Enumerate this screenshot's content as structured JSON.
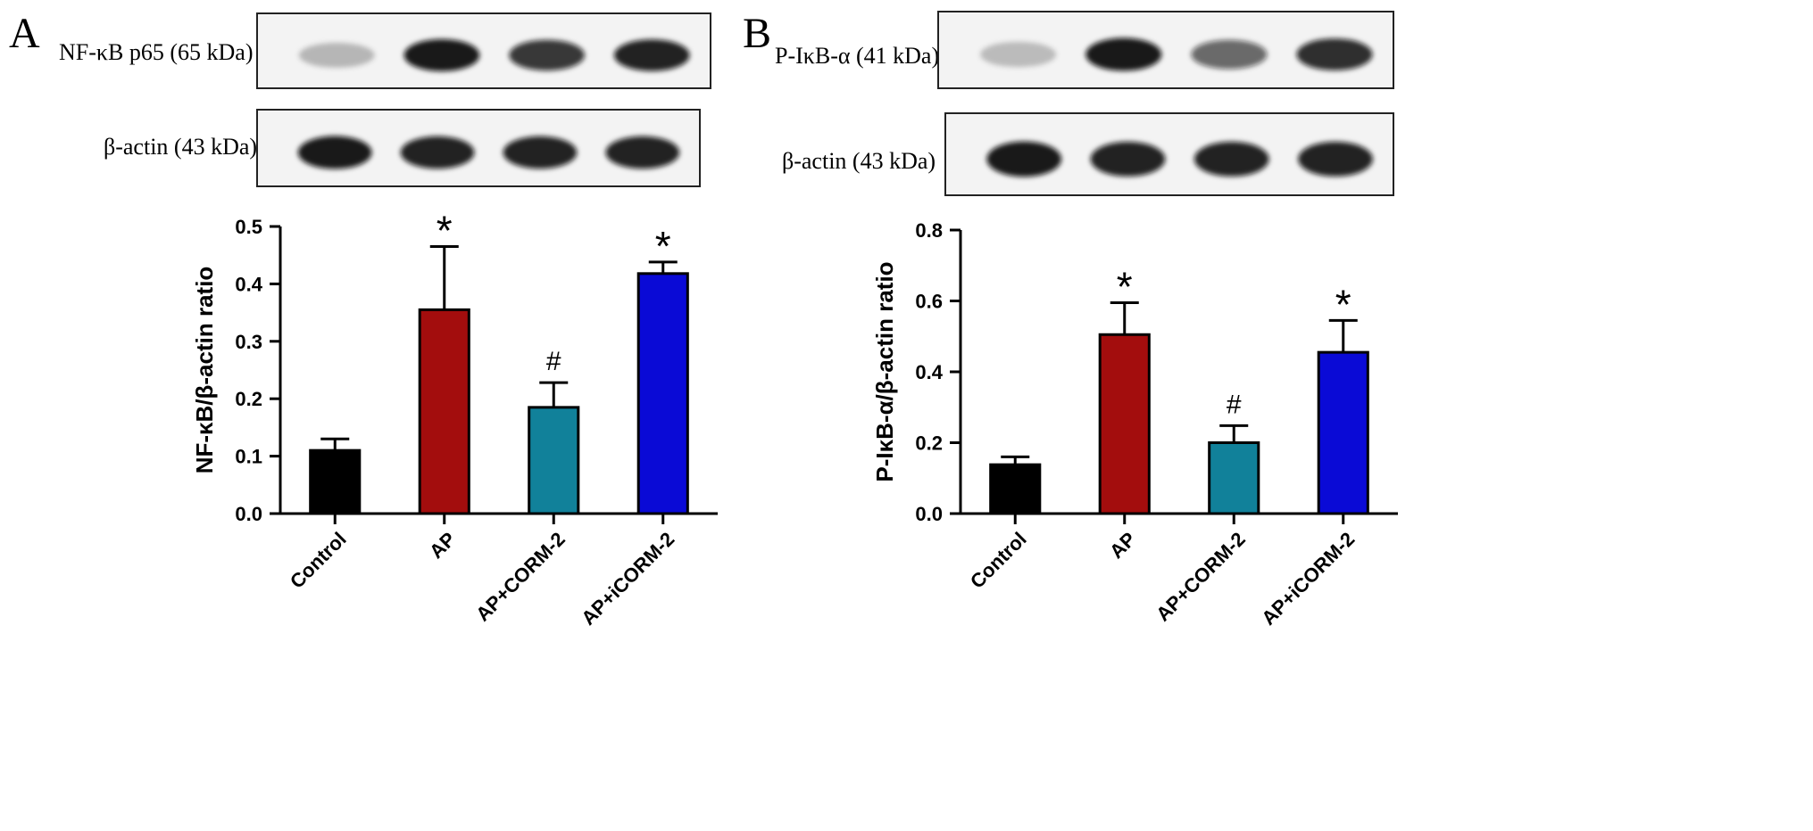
{
  "panels": [
    {
      "letter": "A",
      "blots": [
        {
          "label": "NF-κB p65 (65 kDa)",
          "intensities": [
            0.18,
            1.0,
            0.85,
            0.95
          ]
        },
        {
          "label": "β-actin (43 kDa)",
          "intensities": [
            1.0,
            0.95,
            0.95,
            0.95
          ]
        }
      ]
    },
    {
      "letter": "B",
      "blots": [
        {
          "label": "P-IκB-α (41 kDa)",
          "intensities": [
            0.15,
            1.0,
            0.6,
            0.9
          ]
        },
        {
          "label": "β-actin (43 kDa)",
          "intensities": [
            1.0,
            0.95,
            0.95,
            0.95
          ]
        }
      ]
    }
  ],
  "colors": {
    "Control": "#000000",
    "AP": "#a30d0d",
    "AP+CORM-2": "#11819a",
    "AP+iCORM-2": "#0a0ad6"
  },
  "chart_data": [
    {
      "type": "bar",
      "categories": [
        "Control",
        "AP",
        "AP+CORM-2",
        "AP+iCORM-2"
      ],
      "values": [
        0.11,
        0.355,
        0.185,
        0.418
      ],
      "errors": [
        0.02,
        0.11,
        0.043,
        0.02
      ],
      "annotations": [
        "",
        "*",
        "#",
        "*"
      ],
      "ylabel": "NF-κB/β-actin ratio",
      "ylim": [
        0,
        0.5
      ],
      "yticks": [
        0.0,
        0.1,
        0.2,
        0.3,
        0.4,
        0.5
      ],
      "ytick_labels": [
        "0.0",
        "0.1",
        "0.2",
        "0.3",
        "0.4",
        "0.5"
      ]
    },
    {
      "type": "bar",
      "categories": [
        "Control",
        "AP",
        "AP+CORM-2",
        "AP+iCORM-2"
      ],
      "values": [
        0.138,
        0.505,
        0.2,
        0.455
      ],
      "errors": [
        0.022,
        0.09,
        0.048,
        0.09
      ],
      "annotations": [
        "",
        "*",
        "#",
        "*"
      ],
      "ylabel": "P-IκB-α/β-actin ratio",
      "ylim": [
        0,
        0.8
      ],
      "yticks": [
        0.0,
        0.2,
        0.4,
        0.6,
        0.8
      ],
      "ytick_labels": [
        "0.0",
        "0.2",
        "0.4",
        "0.6",
        "0.8"
      ]
    }
  ]
}
